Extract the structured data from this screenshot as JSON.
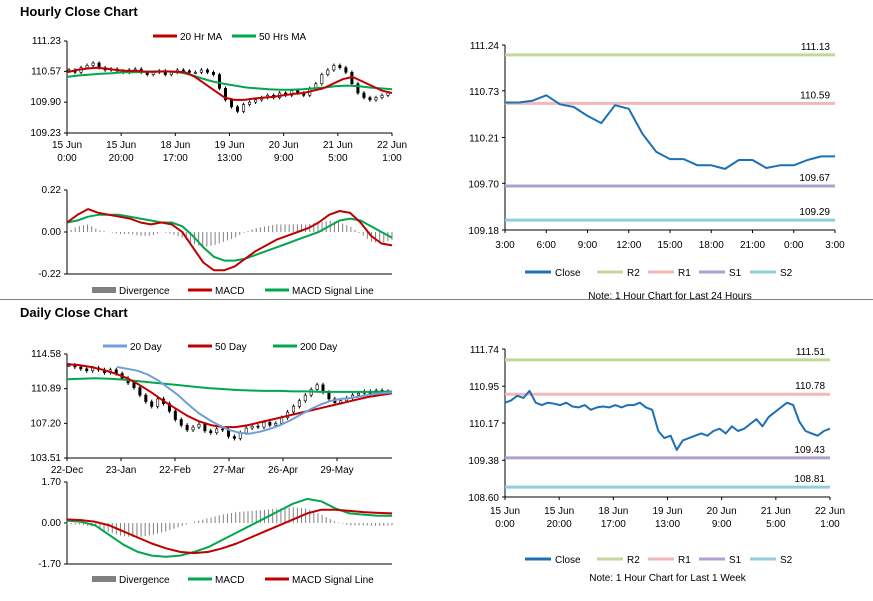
{
  "sections": {
    "hourly_title": "Hourly Close Chart",
    "daily_title": "Daily Close Chart"
  },
  "colors": {
    "close": "#1f6fb4",
    "ma_red": "#c00000",
    "ma_green": "#00a650",
    "ma_blue": "#6f9fd8",
    "r2": "#c4d79b",
    "r1": "#f2b8b8",
    "s1": "#b0a0d0",
    "s2": "#92cddc",
    "divergence": "#808080"
  },
  "chart_data": [
    {
      "id": "hourly-price",
      "type": "line",
      "x_tick_labels": [
        [
          "15 Jun",
          "0:00"
        ],
        [
          "15 Jun",
          "20:00"
        ],
        [
          "18 Jun",
          "17:00"
        ],
        [
          "19 Jun",
          "13:00"
        ],
        [
          "20 Jun",
          "9:00"
        ],
        [
          "21 Jun",
          "5:00"
        ],
        [
          "22 Jun",
          "1:00"
        ]
      ],
      "y_ticks": [
        "111.23",
        "110.57",
        "109.90",
        "109.23"
      ],
      "ylim": [
        109.23,
        111.23
      ],
      "legend": [
        "20 Hr MA",
        "50 Hrs MA"
      ],
      "series": [
        {
          "name": "Close",
          "style": "candles",
          "values": [
            110.6,
            110.55,
            110.65,
            110.7,
            110.75,
            110.65,
            110.6,
            110.62,
            110.58,
            110.55,
            110.6,
            110.62,
            110.55,
            110.5,
            110.55,
            110.58,
            110.5,
            110.55,
            110.6,
            110.58,
            110.55,
            110.55,
            110.6,
            110.55,
            110.5,
            110.2,
            109.95,
            109.8,
            109.7,
            109.85,
            109.9,
            109.95,
            110.0,
            110.05,
            110.0,
            110.1,
            110.05,
            110.15,
            110.1,
            110.05,
            110.2,
            110.3,
            110.5,
            110.6,
            110.7,
            110.65,
            110.55,
            110.3,
            110.1,
            110.0,
            109.95,
            110.0,
            110.05,
            110.1
          ]
        },
        {
          "name": "20 Hr MA",
          "values": [
            110.55,
            110.6,
            110.63,
            110.65,
            110.63,
            110.6,
            110.58,
            110.58,
            110.56,
            110.56,
            110.57,
            110.56,
            110.55,
            110.45,
            110.3,
            110.15,
            110.0,
            109.95,
            109.95,
            109.98,
            110.0,
            110.02,
            110.05,
            110.08,
            110.1,
            110.15,
            110.2,
            110.3,
            110.4,
            110.45,
            110.35,
            110.25,
            110.15,
            110.1
          ]
        },
        {
          "name": "50 Hrs MA",
          "values": [
            110.45,
            110.48,
            110.5,
            110.52,
            110.53,
            110.55,
            110.55,
            110.56,
            110.57,
            110.57,
            110.55,
            110.5,
            110.42,
            110.35,
            110.3,
            110.26,
            110.22,
            110.2,
            110.18,
            110.17,
            110.17,
            110.18,
            110.2,
            110.22,
            110.25,
            110.26,
            110.25,
            110.22,
            110.2,
            110.18
          ]
        }
      ]
    },
    {
      "id": "hourly-macd",
      "type": "line",
      "y_ticks": [
        "0.22",
        "0.00",
        "-0.22"
      ],
      "ylim": [
        -0.22,
        0.22
      ],
      "legend": [
        "Divergence",
        "MACD",
        "MACD Signal Line"
      ],
      "series": [
        {
          "name": "MACD",
          "values": [
            0.05,
            0.09,
            0.12,
            0.1,
            0.09,
            0.08,
            0.07,
            0.05,
            0.04,
            0.05,
            0.04,
            0.0,
            -0.08,
            -0.16,
            -0.2,
            -0.2,
            -0.18,
            -0.14,
            -0.1,
            -0.07,
            -0.04,
            -0.02,
            0.0,
            0.02,
            0.05,
            0.09,
            0.11,
            0.1,
            0.05,
            -0.02,
            -0.06,
            -0.07
          ]
        },
        {
          "name": "MACD Signal Line",
          "values": [
            0.05,
            0.06,
            0.08,
            0.09,
            0.09,
            0.09,
            0.08,
            0.07,
            0.06,
            0.05,
            0.05,
            0.03,
            -0.02,
            -0.08,
            -0.13,
            -0.15,
            -0.15,
            -0.14,
            -0.12,
            -0.1,
            -0.08,
            -0.06,
            -0.04,
            -0.02,
            0.0,
            0.03,
            0.06,
            0.07,
            0.06,
            0.03,
            0.0,
            -0.03
          ]
        }
      ]
    },
    {
      "id": "hourly-pivots",
      "type": "line",
      "x_tick_labels": [
        "3:00",
        "6:00",
        "9:00",
        "12:00",
        "15:00",
        "18:00",
        "21:00",
        "0:00",
        "3:00"
      ],
      "y_ticks": [
        "111.24",
        "110.73",
        "110.21",
        "109.70",
        "109.18"
      ],
      "ylim": [
        109.18,
        111.24
      ],
      "legend": [
        "Close",
        "R2",
        "R1",
        "S1",
        "S2"
      ],
      "levels": {
        "R2": 111.13,
        "R1": 110.59,
        "S1": 109.67,
        "S2": 109.29
      },
      "level_labels": {
        "R2": "111.13",
        "R1": "110.59",
        "S1": "109.67",
        "S2": "109.29"
      },
      "note": "Note: 1 Hour Chart for Last 24 Hours",
      "series": [
        {
          "name": "Close",
          "values": [
            110.6,
            110.6,
            110.62,
            110.68,
            110.58,
            110.55,
            110.45,
            110.37,
            110.57,
            110.53,
            110.25,
            110.05,
            109.97,
            109.97,
            109.9,
            109.9,
            109.86,
            109.96,
            109.96,
            109.87,
            109.9,
            109.9,
            109.96,
            110.0,
            110.0
          ]
        }
      ]
    },
    {
      "id": "daily-price",
      "type": "line",
      "x_tick_labels": [
        "22-Dec",
        "23-Jan",
        "22-Feb",
        "27-Mar",
        "26-Apr",
        "29-May"
      ],
      "y_ticks": [
        "114.58",
        "110.89",
        "107.20",
        "103.51"
      ],
      "ylim": [
        103.51,
        114.58
      ],
      "legend": [
        "20 Day",
        "50 Day",
        "200 Day"
      ],
      "series": [
        {
          "name": "Close",
          "style": "candles",
          "values": [
            113.4,
            113.2,
            113.0,
            112.8,
            113.1,
            112.9,
            112.6,
            112.9,
            112.5,
            112.0,
            111.5,
            111.0,
            110.2,
            109.5,
            109.0,
            109.8,
            109.3,
            108.5,
            107.6,
            107.0,
            106.5,
            106.8,
            107.1,
            106.4,
            106.2,
            106.6,
            106.5,
            105.8,
            105.6,
            106.2,
            106.7,
            106.9,
            106.8,
            107.3,
            107.0,
            107.2,
            107.8,
            108.4,
            109.0,
            109.6,
            110.2,
            110.8,
            111.3,
            110.5,
            109.8,
            109.4,
            109.6,
            109.9,
            110.2,
            110.4,
            110.6,
            110.3,
            110.7,
            110.5,
            110.6
          ]
        },
        {
          "name": "20 Day",
          "values": [
            113.2,
            113.0,
            112.8,
            112.4,
            111.8,
            111.0,
            110.2,
            109.2,
            108.3,
            107.6,
            107.0,
            106.5,
            106.2,
            106.1,
            106.3,
            106.6,
            107.0,
            107.5,
            108.1,
            108.7,
            109.2,
            109.6,
            109.8,
            109.9,
            110.1,
            110.3,
            110.4,
            110.5
          ]
        },
        {
          "name": "50 Day",
          "values": [
            113.5,
            113.4,
            113.2,
            112.9,
            112.5,
            112.0,
            111.3,
            110.5,
            109.6,
            108.8,
            108.0,
            107.4,
            107.0,
            106.8,
            106.8,
            107.0,
            107.3,
            107.6,
            107.9,
            108.2,
            108.5,
            108.8,
            109.1,
            109.4,
            109.7,
            110.0,
            110.2,
            110.4
          ]
        },
        {
          "name": "200 Day",
          "values": [
            111.9,
            111.95,
            112.0,
            111.95,
            111.85,
            111.7,
            111.55,
            111.4,
            111.25,
            111.1,
            110.95,
            110.85,
            110.75,
            110.7,
            110.65,
            110.65,
            110.6,
            110.6,
            110.55,
            110.55,
            110.55,
            110.55,
            110.55,
            110.6
          ]
        }
      ]
    },
    {
      "id": "daily-macd",
      "type": "line",
      "y_ticks": [
        "1.70",
        "0.00",
        "-1.70"
      ],
      "ylim": [
        -1.7,
        1.7
      ],
      "legend": [
        "Divergence",
        "MACD",
        "MACD Signal Line"
      ],
      "series": [
        {
          "name": "MACD",
          "values": [
            0.1,
            0.05,
            -0.1,
            -0.5,
            -0.9,
            -1.2,
            -1.35,
            -1.4,
            -1.35,
            -1.2,
            -1.0,
            -0.7,
            -0.4,
            -0.1,
            0.2,
            0.5,
            0.8,
            1.0,
            0.9,
            0.6,
            0.4,
            0.35,
            0.3,
            0.3
          ]
        },
        {
          "name": "MACD Signal Line",
          "values": [
            0.15,
            0.12,
            0.05,
            -0.1,
            -0.35,
            -0.6,
            -0.85,
            -1.05,
            -1.2,
            -1.25,
            -1.2,
            -1.05,
            -0.85,
            -0.6,
            -0.35,
            -0.1,
            0.15,
            0.4,
            0.55,
            0.55,
            0.5,
            0.45,
            0.42,
            0.4
          ]
        }
      ]
    },
    {
      "id": "daily-pivots",
      "type": "line",
      "x_tick_labels": [
        [
          "15 Jun",
          "0:00"
        ],
        [
          "15 Jun",
          "20:00"
        ],
        [
          "18 Jun",
          "17:00"
        ],
        [
          "19 Jun",
          "13:00"
        ],
        [
          "20 Jun",
          "9:00"
        ],
        [
          "21 Jun",
          "5:00"
        ],
        [
          "22 Jun",
          "1:00"
        ]
      ],
      "y_ticks": [
        "111.74",
        "110.95",
        "110.17",
        "109.38",
        "108.60"
      ],
      "ylim": [
        108.6,
        111.74
      ],
      "legend": [
        "Close",
        "R2",
        "R1",
        "S1",
        "S2"
      ],
      "levels": {
        "R2": 111.51,
        "R1": 110.78,
        "S1": 109.43,
        "S2": 108.81
      },
      "level_labels": {
        "R2": "111.51",
        "R1": "110.78",
        "S1": "109.43",
        "S2": "108.81"
      },
      "note": "Note: 1 Hour Chart for Last 1 Week",
      "series": [
        {
          "name": "Close",
          "values": [
            110.6,
            110.65,
            110.75,
            110.7,
            110.85,
            110.6,
            110.55,
            110.6,
            110.58,
            110.55,
            110.6,
            110.52,
            110.5,
            110.55,
            110.45,
            110.5,
            110.52,
            110.5,
            110.55,
            110.5,
            110.55,
            110.55,
            110.6,
            110.5,
            110.45,
            110.0,
            109.85,
            109.9,
            109.6,
            109.8,
            109.85,
            109.9,
            109.95,
            109.9,
            110.0,
            110.05,
            109.95,
            110.1,
            110.0,
            110.05,
            110.15,
            110.25,
            110.1,
            110.3,
            110.4,
            110.5,
            110.6,
            110.55,
            110.2,
            110.0,
            109.95,
            109.9,
            110.0,
            110.05
          ]
        }
      ]
    }
  ]
}
